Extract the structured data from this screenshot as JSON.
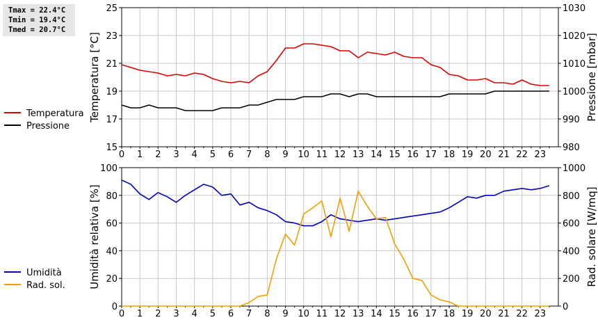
{
  "stats": {
    "tmax": "Tmax = 22.4°C",
    "tmin": "Tmin = 19.4°C",
    "tmed": "Tmed = 20.7°C"
  },
  "colors": {
    "temperature": "#dd0000",
    "pressure": "#000000",
    "humidity": "#0000bb",
    "solar": "#f0a000",
    "grid": "#c8c8c8"
  },
  "chart_data": [
    {
      "type": "line",
      "title": "",
      "xlabel": "",
      "ylabel": "Temperatura [°C]",
      "y2label": "Pressione [mbar]",
      "xlim": [
        0,
        24
      ],
      "ylim": [
        15,
        25
      ],
      "y2lim": [
        980,
        1030
      ],
      "xticks": [
        "0",
        "1",
        "2",
        "3",
        "4",
        "5",
        "6",
        "7",
        "8",
        "9",
        "10",
        "11",
        "12",
        "13",
        "14",
        "15",
        "16",
        "17",
        "18",
        "19",
        "20",
        "21",
        "22",
        "23"
      ],
      "yticks": [
        "15",
        "17",
        "19",
        "21",
        "23",
        "25"
      ],
      "y2ticks": [
        "980",
        "990",
        "1000",
        "1010",
        "1020",
        "1030"
      ],
      "legend": [
        "Temperatura",
        "Pressione"
      ],
      "series": [
        {
          "name": "Temperatura",
          "axis": "left",
          "x": [
            0,
            0.5,
            1,
            1.5,
            2,
            2.5,
            3,
            3.5,
            4,
            4.5,
            5,
            5.5,
            6,
            6.5,
            7,
            7.5,
            8,
            8.5,
            9,
            9.5,
            10,
            10.5,
            11,
            11.5,
            12,
            12.5,
            13,
            13.5,
            14,
            14.5,
            15,
            15.5,
            16,
            16.5,
            17,
            17.5,
            18,
            18.5,
            19,
            19.5,
            20,
            20.5,
            21,
            21.5,
            22,
            22.5,
            23,
            23.5
          ],
          "values": [
            20.9,
            20.7,
            20.5,
            20.4,
            20.3,
            20.1,
            20.2,
            20.1,
            20.3,
            20.2,
            19.9,
            19.7,
            19.6,
            19.7,
            19.6,
            20.1,
            20.4,
            21.2,
            22.1,
            22.1,
            22.4,
            22.4,
            22.3,
            22.2,
            21.9,
            21.9,
            21.4,
            21.8,
            21.7,
            21.6,
            21.8,
            21.5,
            21.4,
            21.4,
            20.9,
            20.7,
            20.2,
            20.1,
            19.8,
            19.8,
            19.9,
            19.6,
            19.6,
            19.5,
            19.8,
            19.5,
            19.4,
            19.4
          ]
        },
        {
          "name": "Pressione",
          "axis": "right",
          "x": [
            0,
            0.5,
            1,
            1.5,
            2,
            2.5,
            3,
            3.5,
            4,
            4.5,
            5,
            5.5,
            6,
            6.5,
            7,
            7.5,
            8,
            8.5,
            9,
            9.5,
            10,
            10.5,
            11,
            11.5,
            12,
            12.5,
            13,
            13.5,
            14,
            14.5,
            15,
            15.5,
            16,
            16.5,
            17,
            17.5,
            18,
            18.5,
            19,
            19.5,
            20,
            20.5,
            21,
            21.5,
            22,
            22.5,
            23,
            23.5
          ],
          "values": [
            995,
            994,
            994,
            995,
            994,
            994,
            994,
            993,
            993,
            993,
            993,
            994,
            994,
            994,
            995,
            995,
            996,
            997,
            997,
            997,
            998,
            998,
            998,
            999,
            999,
            998,
            999,
            999,
            998,
            998,
            998,
            998,
            998,
            998,
            998,
            998,
            999,
            999,
            999,
            999,
            999,
            1000,
            1000,
            1000,
            1000,
            1000,
            1000,
            1000
          ]
        }
      ]
    },
    {
      "type": "line",
      "title": "",
      "xlabel": "",
      "ylabel": "Umidità relativa [%]",
      "y2label": "Rad. solare [W/mq]",
      "xlim": [
        0,
        24
      ],
      "ylim": [
        0,
        100
      ],
      "y2lim": [
        0,
        1000
      ],
      "xticks": [
        "0",
        "1",
        "2",
        "3",
        "4",
        "5",
        "6",
        "7",
        "8",
        "9",
        "10",
        "11",
        "12",
        "13",
        "14",
        "15",
        "16",
        "17",
        "18",
        "19",
        "20",
        "21",
        "22",
        "23"
      ],
      "yticks": [
        "0",
        "20",
        "40",
        "60",
        "80",
        "100"
      ],
      "y2ticks": [
        "0",
        "200",
        "400",
        "600",
        "800",
        "1000"
      ],
      "legend": [
        "Umidità",
        "Rad. sol."
      ],
      "series": [
        {
          "name": "Umidità",
          "axis": "left",
          "x": [
            0,
            0.5,
            1,
            1.5,
            2,
            2.5,
            3,
            3.5,
            4,
            4.5,
            5,
            5.5,
            6,
            6.5,
            7,
            7.5,
            8,
            8.5,
            9,
            9.5,
            10,
            10.5,
            11,
            11.5,
            12,
            12.5,
            13,
            13.5,
            14,
            14.5,
            15,
            15.5,
            16,
            16.5,
            17,
            17.5,
            18,
            18.5,
            19,
            19.5,
            20,
            20.5,
            21,
            21.5,
            22,
            22.5,
            23,
            23.5
          ],
          "values": [
            91,
            88,
            81,
            77,
            82,
            79,
            75,
            80,
            84,
            88,
            86,
            80,
            81,
            73,
            75,
            71,
            69,
            66,
            61,
            60,
            58,
            58,
            61,
            66,
            63,
            62,
            61,
            62,
            63,
            62,
            63,
            64,
            65,
            66,
            67,
            68,
            71,
            75,
            79,
            78,
            80,
            80,
            83,
            84,
            85,
            84,
            85,
            87
          ]
        },
        {
          "name": "Rad. sol.",
          "axis": "right",
          "x": [
            0,
            0.5,
            1,
            1.5,
            2,
            2.5,
            3,
            3.5,
            4,
            4.5,
            5,
            5.5,
            6,
            6.5,
            7,
            7.5,
            8,
            8.5,
            9,
            9.5,
            10,
            10.5,
            11,
            11.5,
            12,
            12.5,
            13,
            13.5,
            14,
            14.5,
            15,
            15.5,
            16,
            16.5,
            17,
            17.5,
            18,
            18.5,
            19,
            19.5,
            20,
            20.5,
            21,
            21.5,
            22,
            22.5,
            23,
            23.5
          ],
          "values": [
            0,
            0,
            0,
            0,
            0,
            0,
            0,
            0,
            0,
            0,
            0,
            0,
            0,
            0,
            25,
            70,
            80,
            340,
            520,
            440,
            665,
            710,
            760,
            500,
            780,
            540,
            830,
            720,
            630,
            640,
            450,
            340,
            200,
            185,
            80,
            45,
            30,
            0,
            0,
            0,
            0,
            0,
            0,
            0,
            0,
            0,
            0,
            0
          ]
        }
      ]
    }
  ]
}
